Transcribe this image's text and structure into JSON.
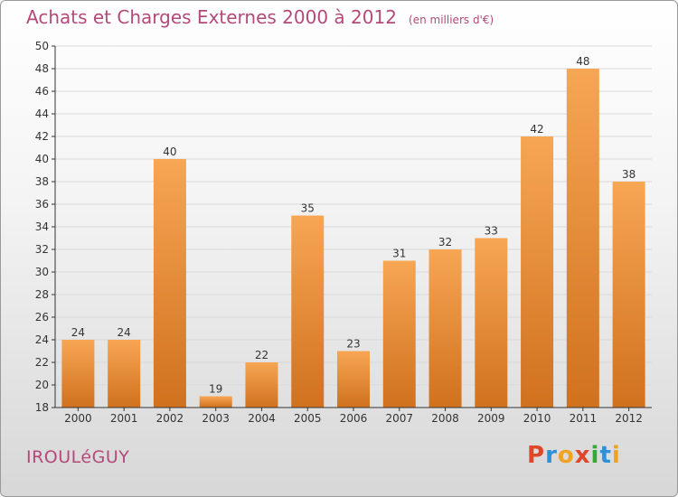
{
  "title": "Achats et Charges Externes 2000 à 2012",
  "unit": "(en milliers d'€)",
  "commune": "IROULéGUY",
  "logo": {
    "letters": [
      "P",
      "r",
      "o",
      "x",
      "i",
      "t",
      "i"
    ],
    "colors": [
      "#e0472a",
      "#2f8fd8",
      "#f0a320",
      "#e0472a",
      "#36a83a",
      "#2f8fd8",
      "#f0a320"
    ]
  },
  "colors": {
    "bar_light": "#f7a654",
    "bar_dark": "#d0711e",
    "text": "#b44a7a",
    "axis": "#333333",
    "grid": "#d9d9d9"
  },
  "chart_data": {
    "type": "bar",
    "categories": [
      "2000",
      "2001",
      "2002",
      "2003",
      "2004",
      "2005",
      "2006",
      "2007",
      "2008",
      "2009",
      "2010",
      "2011",
      "2012"
    ],
    "values": [
      24,
      24,
      40,
      19,
      22,
      35,
      23,
      31,
      32,
      33,
      42,
      48,
      38
    ],
    "yticks": [
      18,
      20,
      22,
      24,
      26,
      28,
      30,
      32,
      34,
      36,
      38,
      40,
      42,
      44,
      46,
      48,
      50
    ],
    "ylim": [
      18,
      50
    ],
    "grid": true
  }
}
